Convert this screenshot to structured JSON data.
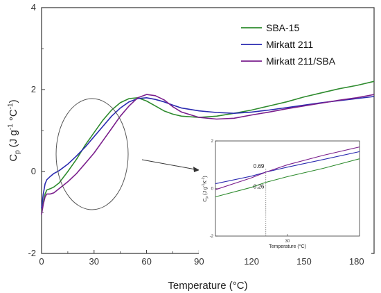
{
  "chart_data": [
    {
      "type": "line",
      "ylabel_main": "C",
      "ylabel_sub": "p",
      "ylabel_units": "(J g",
      "ylabel_exp1": "-1",
      "ylabel_mid": " °C",
      "ylabel_exp2": "-1",
      "ylabel_close": ")",
      "xlabel": "Temperature (°C)",
      "xlim": [
        0,
        190
      ],
      "ylim": [
        -2,
        4
      ],
      "xticks": [
        0,
        30,
        60,
        90,
        120,
        150,
        180
      ],
      "yticks": [
        -2,
        0,
        2,
        4
      ],
      "legend_position": "top-right",
      "series": [
        {
          "name": "SBA-15",
          "color": "#2e8b2e",
          "points": [
            [
              0,
              -1.0
            ],
            [
              1,
              -0.75
            ],
            [
              2,
              -0.55
            ],
            [
              3,
              -0.45
            ],
            [
              5,
              -0.42
            ],
            [
              7,
              -0.38
            ],
            [
              10,
              -0.28
            ],
            [
              15,
              0.0
            ],
            [
              20,
              0.3
            ],
            [
              25,
              0.65
            ],
            [
              30,
              0.95
            ],
            [
              35,
              1.25
            ],
            [
              40,
              1.5
            ],
            [
              45,
              1.68
            ],
            [
              50,
              1.78
            ],
            [
              55,
              1.8
            ],
            [
              60,
              1.72
            ],
            [
              65,
              1.6
            ],
            [
              70,
              1.48
            ],
            [
              75,
              1.4
            ],
            [
              80,
              1.35
            ],
            [
              90,
              1.32
            ],
            [
              100,
              1.35
            ],
            [
              110,
              1.42
            ],
            [
              120,
              1.5
            ],
            [
              130,
              1.6
            ],
            [
              140,
              1.7
            ],
            [
              150,
              1.82
            ],
            [
              160,
              1.92
            ],
            [
              170,
              2.02
            ],
            [
              180,
              2.1
            ],
            [
              190,
              2.2
            ]
          ]
        },
        {
          "name": "Mirkatt 211",
          "color": "#2a2ab0",
          "points": [
            [
              0,
              -0.9
            ],
            [
              1,
              -0.55
            ],
            [
              2,
              -0.3
            ],
            [
              3,
              -0.2
            ],
            [
              5,
              -0.12
            ],
            [
              7,
              -0.05
            ],
            [
              10,
              0.02
            ],
            [
              15,
              0.18
            ],
            [
              20,
              0.38
            ],
            [
              25,
              0.6
            ],
            [
              30,
              0.85
            ],
            [
              35,
              1.1
            ],
            [
              40,
              1.35
            ],
            [
              45,
              1.55
            ],
            [
              50,
              1.7
            ],
            [
              55,
              1.78
            ],
            [
              60,
              1.8
            ],
            [
              65,
              1.76
            ],
            [
              70,
              1.7
            ],
            [
              75,
              1.62
            ],
            [
              80,
              1.55
            ],
            [
              90,
              1.48
            ],
            [
              100,
              1.44
            ],
            [
              110,
              1.42
            ],
            [
              120,
              1.45
            ],
            [
              130,
              1.5
            ],
            [
              140,
              1.56
            ],
            [
              150,
              1.62
            ],
            [
              160,
              1.68
            ],
            [
              170,
              1.73
            ],
            [
              180,
              1.78
            ],
            [
              190,
              1.83
            ]
          ]
        },
        {
          "name": "Mirkatt 211/SBA",
          "color": "#7a1e8c",
          "points": [
            [
              0,
              -1.05
            ],
            [
              1,
              -0.8
            ],
            [
              2,
              -0.62
            ],
            [
              3,
              -0.55
            ],
            [
              5,
              -0.55
            ],
            [
              7,
              -0.52
            ],
            [
              10,
              -0.42
            ],
            [
              15,
              -0.25
            ],
            [
              20,
              -0.05
            ],
            [
              25,
              0.2
            ],
            [
              30,
              0.45
            ],
            [
              35,
              0.75
            ],
            [
              40,
              1.05
            ],
            [
              45,
              1.35
            ],
            [
              50,
              1.6
            ],
            [
              55,
              1.8
            ],
            [
              60,
              1.88
            ],
            [
              65,
              1.85
            ],
            [
              70,
              1.75
            ],
            [
              75,
              1.58
            ],
            [
              80,
              1.45
            ],
            [
              90,
              1.32
            ],
            [
              100,
              1.28
            ],
            [
              110,
              1.3
            ],
            [
              120,
              1.38
            ],
            [
              130,
              1.45
            ],
            [
              140,
              1.53
            ],
            [
              150,
              1.6
            ],
            [
              160,
              1.67
            ],
            [
              170,
              1.74
            ],
            [
              180,
              1.8
            ],
            [
              190,
              1.88
            ]
          ]
        }
      ]
    },
    {
      "type": "line",
      "ylabel": "C",
      "ylabel_sub": "p",
      "ylabel_units": "(J g",
      "ylabel_exp1": "-1",
      "ylabel_mid": "K",
      "ylabel_exp2": "-1",
      "ylabel_close": ")",
      "xlabel": "Temperature (°C)",
      "xlim": [
        20,
        40
      ],
      "ylim": [
        -2,
        2
      ],
      "xticks": [
        30
      ],
      "yticks": [
        -2,
        0,
        2
      ],
      "vline_x": 27,
      "annotations": [
        "0.69",
        "0.26"
      ],
      "series": [
        {
          "name": "Mirkatt 211",
          "color": "#2a2ab0",
          "points": [
            [
              20,
              0.2
            ],
            [
              25,
              0.52
            ],
            [
              27,
              0.69
            ],
            [
              30,
              0.9
            ],
            [
              35,
              1.22
            ],
            [
              40,
              1.55
            ]
          ]
        },
        {
          "name": "Mirkatt 211/SBA",
          "color": "#7a1e8c",
          "points": [
            [
              20,
              -0.05
            ],
            [
              25,
              0.45
            ],
            [
              27,
              0.69
            ],
            [
              30,
              1.0
            ],
            [
              35,
              1.4
            ],
            [
              40,
              1.75
            ]
          ]
        },
        {
          "name": "SBA-15",
          "color": "#2e8b2e",
          "points": [
            [
              20,
              -0.35
            ],
            [
              25,
              0.05
            ],
            [
              27,
              0.26
            ],
            [
              30,
              0.5
            ],
            [
              35,
              0.85
            ],
            [
              40,
              1.25
            ]
          ]
        }
      ]
    }
  ]
}
